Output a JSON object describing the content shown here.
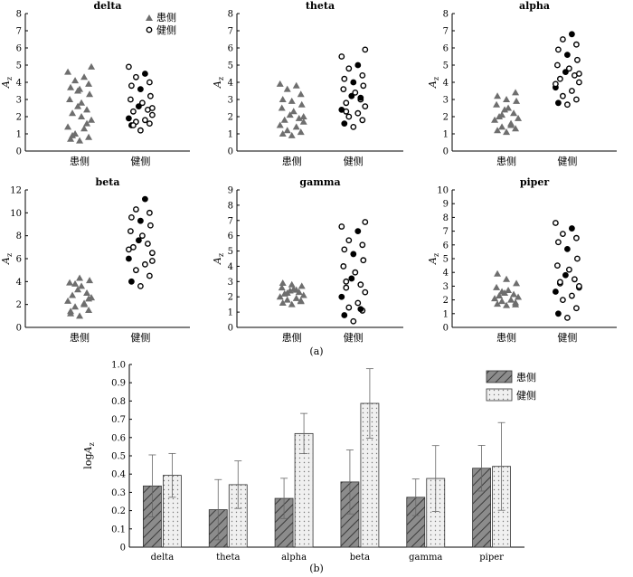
{
  "caption_a": "(a)",
  "caption_b": "(b)",
  "affected_label": "患侧",
  "healthy_label": "健侧",
  "colors": {
    "affected": "#6e6e6e",
    "healthy": "#000000",
    "bar_affected": "#8c8c8c",
    "bar_healthy": "#f0f0f0"
  },
  "chart_data": [
    {
      "type": "scatter",
      "title": "delta",
      "ylabel": "A_z",
      "ylim": [
        0,
        8
      ],
      "yticks": [
        "0",
        "1",
        "2",
        "3",
        "4",
        "5",
        "6",
        "7",
        "8"
      ],
      "categories": [
        "患侧",
        "健侧"
      ],
      "legend": [
        "患侧",
        "健侧"
      ],
      "series": [
        {
          "name": "患侧",
          "values": [
            0.6,
            0.7,
            0.8,
            1.0,
            1.3,
            1.4,
            1.8,
            2.2,
            2.4,
            2.6,
            2.8,
            3.0,
            3.3,
            3.6,
            3.7,
            3.9,
            4.1,
            4.3,
            4.6,
            4.9,
            0.9,
            1.6,
            3.5,
            2.0
          ]
        },
        {
          "name": "健侧",
          "values": [
            1.2,
            1.5,
            1.6,
            1.7,
            1.8,
            1.9,
            2.1,
            2.3,
            2.4,
            2.6,
            2.8,
            3.0,
            3.2,
            3.6,
            3.8,
            4.0,
            4.3,
            4.5,
            4.9,
            2.5,
            1.5
          ]
        }
      ]
    },
    {
      "type": "scatter",
      "title": "theta",
      "ylabel": "A_z",
      "ylim": [
        0,
        8
      ],
      "yticks": [
        "0",
        "1",
        "2",
        "3",
        "4",
        "5",
        "6",
        "7",
        "8"
      ],
      "categories": [
        "患侧",
        "健侧"
      ],
      "series": [
        {
          "name": "患侧",
          "values": [
            0.9,
            1.0,
            1.1,
            1.2,
            1.4,
            1.5,
            1.7,
            1.8,
            1.9,
            2.1,
            2.3,
            2.5,
            2.7,
            2.9,
            3.0,
            3.3,
            3.6,
            3.8,
            3.9,
            2.0
          ]
        },
        {
          "name": "健侧",
          "values": [
            1.4,
            1.6,
            1.8,
            2.0,
            2.2,
            2.4,
            2.6,
            2.8,
            3.0,
            3.2,
            3.4,
            3.6,
            3.8,
            4.0,
            4.2,
            4.4,
            4.8,
            5.0,
            5.5,
            5.9,
            2.3,
            3.1
          ]
        }
      ]
    },
    {
      "type": "scatter",
      "title": "alpha",
      "ylabel": "A_z",
      "ylim": [
        0,
        8
      ],
      "yticks": [
        "0",
        "1",
        "2",
        "3",
        "4",
        "5",
        "6",
        "7",
        "8"
      ],
      "categories": [
        "患侧",
        "健侧"
      ],
      "series": [
        {
          "name": "患侧",
          "values": [
            1.1,
            1.2,
            1.3,
            1.4,
            1.6,
            1.8,
            1.9,
            2.0,
            2.2,
            2.4,
            2.5,
            2.7,
            2.9,
            3.0,
            3.2,
            3.4,
            2.1,
            1.5
          ]
        },
        {
          "name": "健侧",
          "values": [
            2.7,
            2.8,
            3.0,
            3.2,
            3.5,
            3.7,
            4.0,
            4.2,
            4.4,
            4.6,
            4.8,
            5.0,
            5.3,
            5.6,
            5.9,
            6.2,
            6.5,
            6.8,
            3.9,
            4.5
          ]
        }
      ]
    },
    {
      "type": "scatter",
      "title": "beta",
      "ylabel": "A_z",
      "ylim": [
        0,
        12
      ],
      "yticks": [
        "0",
        "2",
        "4",
        "6",
        "8",
        "10",
        "12"
      ],
      "categories": [
        "患侧",
        "健侧"
      ],
      "series": [
        {
          "name": "患侧",
          "values": [
            1.0,
            1.2,
            1.5,
            1.8,
            2.0,
            2.3,
            2.6,
            2.8,
            3.0,
            3.3,
            3.6,
            3.9,
            4.1,
            4.3,
            1.4,
            2.5,
            3.8,
            2.1
          ]
        },
        {
          "name": "健侧",
          "values": [
            3.6,
            4.0,
            4.5,
            5.0,
            5.5,
            6.0,
            6.5,
            7.0,
            7.3,
            7.6,
            8.0,
            8.4,
            8.9,
            9.3,
            9.6,
            10.0,
            10.3,
            11.2,
            6.8,
            5.8
          ]
        }
      ]
    },
    {
      "type": "scatter",
      "title": "gamma",
      "ylabel": "A_z",
      "ylim": [
        0,
        9
      ],
      "yticks": [
        "0",
        "1",
        "2",
        "3",
        "4",
        "5",
        "6",
        "7",
        "8",
        "9"
      ],
      "categories": [
        "患侧",
        "健侧"
      ],
      "series": [
        {
          "name": "患侧",
          "values": [
            1.5,
            1.6,
            1.7,
            1.8,
            1.9,
            2.0,
            2.1,
            2.2,
            2.3,
            2.4,
            2.5,
            2.6,
            2.7,
            2.8,
            2.9,
            1.75,
            2.25,
            2.45
          ]
        },
        {
          "name": "健侧",
          "values": [
            0.4,
            0.8,
            1.1,
            1.3,
            1.6,
            2.0,
            2.3,
            2.6,
            2.8,
            3.2,
            3.6,
            4.0,
            4.4,
            4.8,
            5.1,
            5.4,
            5.7,
            6.3,
            6.6,
            6.9,
            3.0,
            1.2
          ]
        }
      ]
    },
    {
      "type": "scatter",
      "title": "piper",
      "ylabel": "A_z",
      "ylim": [
        0,
        10
      ],
      "yticks": [
        "0",
        "1",
        "2",
        "3",
        "4",
        "5",
        "6",
        "7",
        "8",
        "9",
        "10"
      ],
      "categories": [
        "患侧",
        "健侧"
      ],
      "series": [
        {
          "name": "患侧",
          "values": [
            1.6,
            1.7,
            1.8,
            1.9,
            2.0,
            2.1,
            2.2,
            2.3,
            2.4,
            2.5,
            2.7,
            2.9,
            3.2,
            3.5,
            3.9,
            1.65,
            2.6
          ]
        },
        {
          "name": "健侧",
          "values": [
            0.7,
            1.0,
            1.4,
            2.0,
            2.3,
            2.6,
            2.9,
            3.2,
            3.5,
            3.8,
            4.2,
            4.5,
            5.0,
            5.7,
            6.2,
            6.5,
            6.8,
            7.2,
            7.6,
            3.0,
            3.3
          ]
        }
      ]
    },
    {
      "type": "bar",
      "ylabel": "logA_z",
      "ylim": [
        0,
        1.0
      ],
      "yticks": [
        "0",
        "0.1",
        "0.2",
        "0.3",
        "0.4",
        "0.5",
        "0.6",
        "0.7",
        "0.8",
        "0.9",
        "1.0"
      ],
      "categories": [
        "delta",
        "theta",
        "alpha",
        "beta",
        "gamma",
        "piper"
      ],
      "legend": [
        "患侧",
        "健侧"
      ],
      "series": [
        {
          "name": "患侧",
          "values": [
            0.335,
            0.205,
            0.267,
            0.357,
            0.273,
            0.432
          ],
          "error": [
            0.17,
            0.165,
            0.11,
            0.175,
            0.1,
            0.125
          ]
        },
        {
          "name": "健侧",
          "values": [
            0.393,
            0.342,
            0.622,
            0.787,
            0.376,
            0.442
          ],
          "error": [
            0.12,
            0.13,
            0.11,
            0.19,
            0.18,
            0.24
          ]
        }
      ]
    }
  ]
}
